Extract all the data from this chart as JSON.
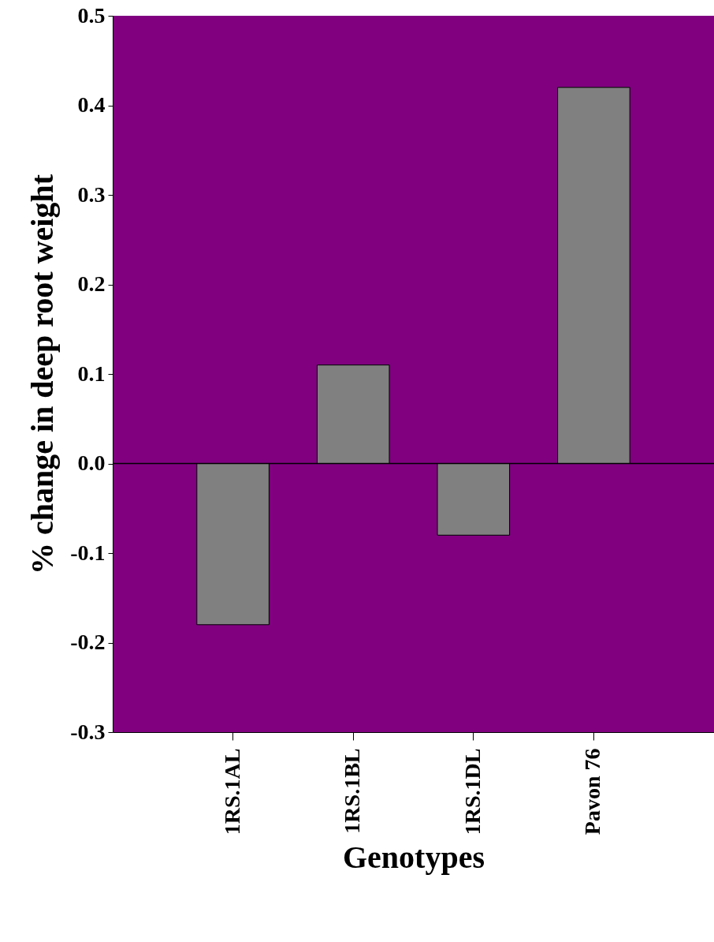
{
  "chart_data": {
    "type": "bar",
    "xlabel": "Genotypes",
    "ylabel": "% change in deep root weight",
    "categories": [
      "1RS.1AL",
      "1RS.1BL",
      "1RS.1DL",
      "Pavon 76"
    ],
    "values": [
      -0.18,
      0.11,
      -0.08,
      0.42
    ],
    "color": "#808080",
    "ylim": [
      -0.3,
      0.5
    ],
    "yticks": [
      -0.3,
      -0.2,
      -0.1,
      {
        "value": 0,
        "label": "0.0"
      },
      0.1,
      0.2,
      0.3,
      0.4,
      0.5
    ],
    "ref_lines": [
      {
        "axis": "y",
        "value": 0,
        "color": "#000000"
      }
    ],
    "grid": false
  }
}
